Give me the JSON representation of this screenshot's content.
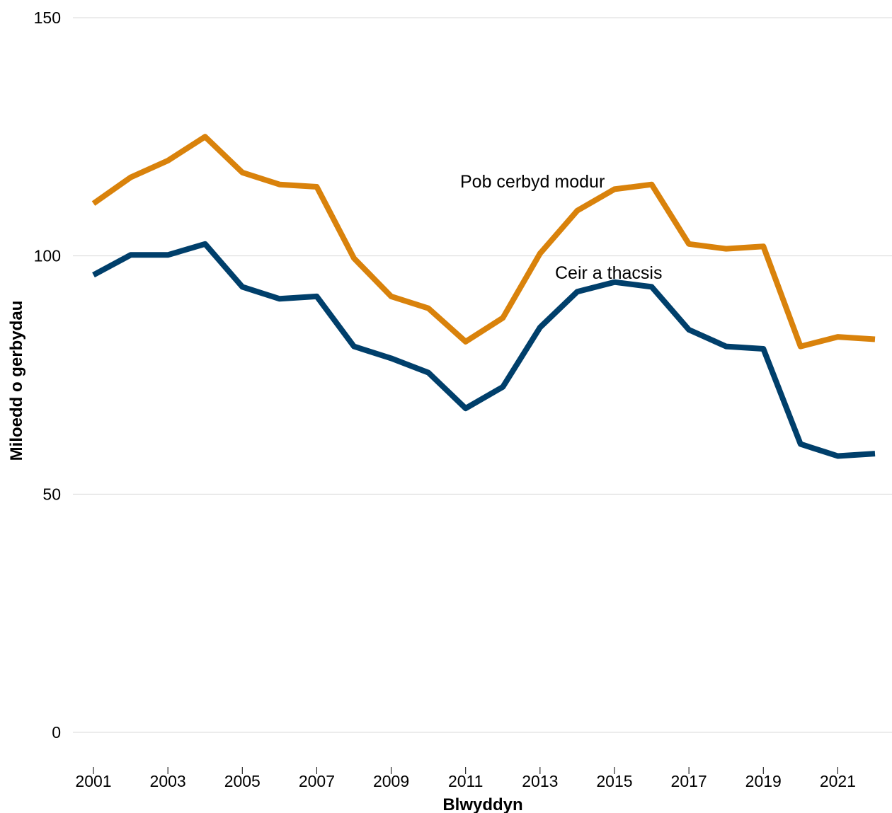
{
  "chart_data": {
    "type": "line",
    "xlabel": "Blwyddyn",
    "ylabel": "Miloedd o gerbydau",
    "ylim": [
      0,
      150
    ],
    "yticks": [
      0,
      50,
      100,
      150
    ],
    "xlim": [
      2001,
      2022
    ],
    "xticks": [
      2001,
      2003,
      2005,
      2007,
      2009,
      2011,
      2013,
      2015,
      2017,
      2019,
      2021
    ],
    "grid": "horizontal",
    "legend": "inline labels",
    "x": [
      2001,
      2002,
      2003,
      2004,
      2005,
      2006,
      2007,
      2008,
      2009,
      2010,
      2011,
      2012,
      2013,
      2014,
      2015,
      2016,
      2017,
      2018,
      2019,
      2020,
      2021,
      2022
    ],
    "series": [
      {
        "name": "Pob cerbyd modur",
        "color": "#d9820b",
        "values": [
          111,
          116.5,
          120,
          125,
          117.5,
          115,
          114.5,
          99.5,
          91.5,
          89,
          82,
          87,
          100.5,
          109.5,
          114,
          115,
          102.5,
          101.5,
          102,
          81,
          83,
          82.5
        ]
      },
      {
        "name": "Ceir a thacsis",
        "color": "#003f6b",
        "values": [
          96,
          100.2,
          100.2,
          102.5,
          93.5,
          91,
          91.5,
          81,
          78.5,
          75.5,
          68,
          72.5,
          85,
          92.5,
          94.5,
          93.5,
          84.5,
          81,
          80.5,
          60.5,
          58,
          58.5
        ]
      }
    ]
  }
}
